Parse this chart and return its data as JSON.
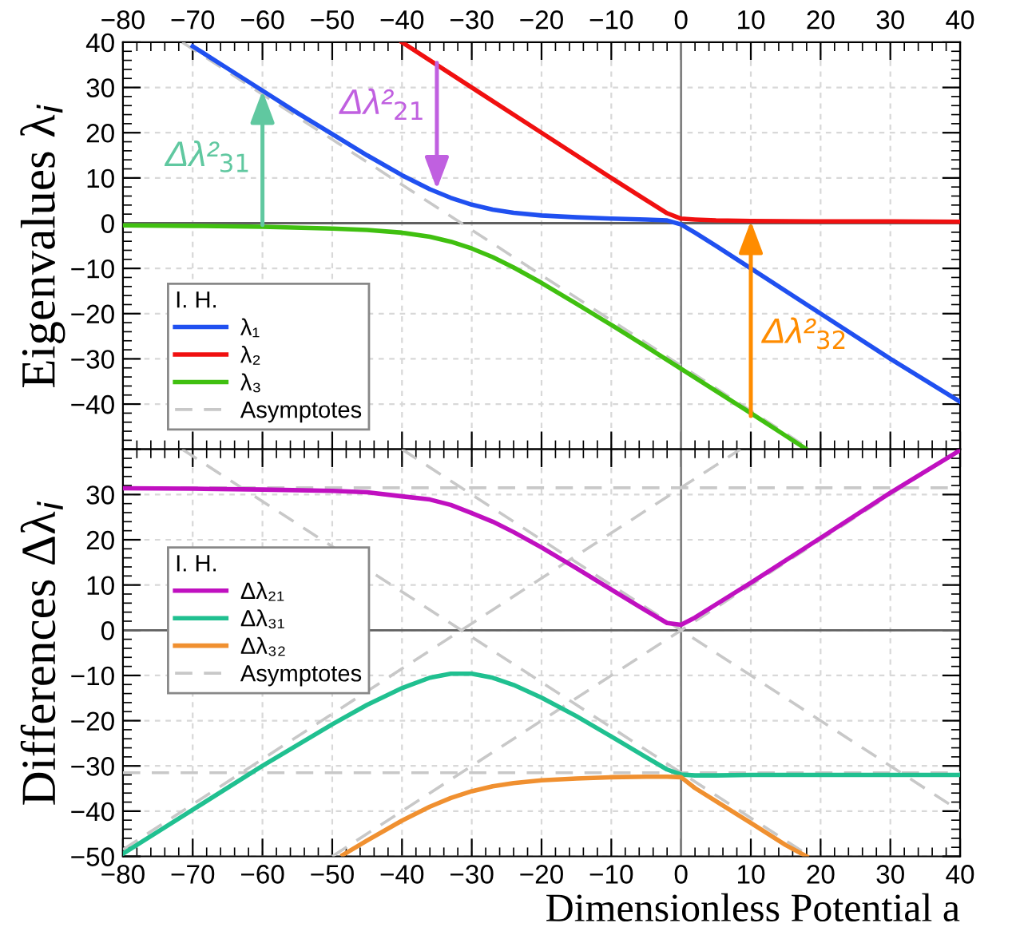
{
  "chart_data": [
    {
      "type": "line",
      "ylabel": "Eigenvalues λ$_{i}$",
      "legend_title": "I. H.",
      "legend": "bottom left",
      "grid": true,
      "xlim": [
        -80,
        40
      ],
      "xticks": [
        -80,
        -70,
        -60,
        -50,
        -40,
        -30,
        -20,
        -10,
        0,
        10,
        20,
        30,
        40
      ],
      "ylim": [
        -50,
        40
      ],
      "yticks": [
        -40,
        -30,
        -20,
        -10,
        0,
        10,
        20,
        30,
        40
      ],
      "ref_lines": [
        {
          "axis": "x",
          "value": 0,
          "color": "#808080"
        },
        {
          "axis": "y",
          "value": 0,
          "color": "#606060"
        }
      ],
      "series": [
        {
          "name": "Asymptotes",
          "color": "#c8c8c8",
          "line_style": "dashed",
          "x": [
            -71.5,
            18.5
          ],
          "values": [
            40,
            -50
          ]
        },
        {
          "name": "λ₁",
          "color": "#2050f0",
          "line_style": "solid",
          "x": [
            -70,
            -65,
            -60,
            -55,
            -50,
            -45,
            -40,
            -36,
            -33,
            -30,
            -27,
            -24,
            -20,
            -15,
            -10,
            -5,
            -2,
            0,
            2,
            5,
            10,
            20,
            30,
            40
          ],
          "values": [
            39.1,
            34.2,
            29.3,
            24.4,
            19.7,
            15.0,
            10.6,
            7.5,
            5.6,
            4.1,
            3.0,
            2.3,
            1.7,
            1.3,
            1.0,
            0.8,
            0.6,
            -0.3,
            -2.1,
            -5.0,
            -10.0,
            -20.0,
            -30.0,
            -39.5
          ]
        },
        {
          "name": "λ₂",
          "color": "#f01010",
          "line_style": "solid",
          "x": [
            -40,
            -30,
            -20,
            -10,
            -5,
            -2,
            0,
            2,
            5,
            10,
            20,
            30,
            40
          ],
          "values": [
            40,
            30,
            20,
            10,
            5.1,
            2.2,
            1.0,
            0.8,
            0.6,
            0.5,
            0.4,
            0.4,
            0.3
          ]
        },
        {
          "name": "λ₃",
          "color": "#40c010",
          "line_style": "solid",
          "x": [
            -80,
            -70,
            -60,
            -50,
            -45,
            -40,
            -36,
            -33,
            -30,
            -27,
            -24,
            -20,
            -15,
            -10,
            -5,
            0,
            5,
            10,
            15,
            18
          ],
          "values": [
            -0.5,
            -0.6,
            -0.8,
            -1.2,
            -1.5,
            -2.1,
            -3.0,
            -4.1,
            -5.6,
            -7.5,
            -9.8,
            -13.2,
            -17.8,
            -22.5,
            -27.3,
            -32.2,
            -37.1,
            -42.0,
            -47.0,
            -50.0
          ]
        }
      ],
      "annotations": [
        {
          "text": "Δλ²$_{31}$",
          "x": -60,
          "y": 29.3
        },
        {
          "text": "Δλ²$_{21}$",
          "x": -35,
          "y": 7.5
        },
        {
          "text": "Δλ²$_{32}$",
          "x": 10,
          "y": 0.5
        }
      ]
    },
    {
      "type": "line",
      "xlabel": "Dimensionless Potential a",
      "ylabel": "Differences Δλ$_{i}$",
      "legend_title": "I. H.",
      "legend": "left",
      "grid": true,
      "xlim": [
        -80,
        40
      ],
      "xticks": [
        -80,
        -70,
        -60,
        -50,
        -40,
        -30,
        -20,
        -10,
        0,
        10,
        20,
        30,
        40
      ],
      "ylim": [
        -50,
        40
      ],
      "yticks": [
        -50,
        -40,
        -30,
        -20,
        -10,
        0,
        10,
        20,
        30,
        {
          "value": 40,
          "label": null
        }
      ],
      "ref_lines": [
        {
          "axis": "x",
          "value": 0,
          "color": "#808080"
        },
        {
          "axis": "y",
          "value": 0,
          "color": "#606060"
        }
      ],
      "series": [
        {
          "name": "Asymptotes",
          "color": "#c8c8c8",
          "line_style": "dashed",
          "x": [
            -80,
            40
          ],
          "values": [
            31.5,
            31.5
          ]
        },
        {
          "color": "#c8c8c8",
          "line_style": "dashed",
          "x": [
            -80,
            40
          ],
          "values": [
            -31.5,
            -31.5
          ]
        },
        {
          "color": "#c8c8c8",
          "line_style": "dashed",
          "x": [
            -80,
            8.5
          ],
          "values": [
            -48.5,
            40
          ]
        },
        {
          "color": "#c8c8c8",
          "line_style": "dashed",
          "x": [
            -71.5,
            18.5
          ],
          "values": [
            40,
            -50
          ]
        },
        {
          "color": "#c8c8c8",
          "line_style": "dashed",
          "x": [
            -50,
            40
          ],
          "values": [
            -50,
            40
          ]
        },
        {
          "color": "#c8c8c8",
          "line_style": "dashed",
          "x": [
            -40,
            40
          ],
          "values": [
            40,
            -40
          ]
        },
        {
          "name": "Δλ₂₁",
          "color": "#c010c0",
          "line_style": "solid",
          "x": [
            -80,
            -70,
            -60,
            -50,
            -45,
            -40,
            -36,
            -33,
            -30,
            -27,
            -24,
            -20,
            -15,
            -10,
            -5,
            -2,
            0,
            2,
            5,
            10,
            20,
            30,
            40
          ],
          "values": [
            31.4,
            31.3,
            31.1,
            30.8,
            30.5,
            29.6,
            28.9,
            27.7,
            25.9,
            24.0,
            21.7,
            18.3,
            13.7,
            9.0,
            4.3,
            1.6,
            1.2,
            2.8,
            5.7,
            10.5,
            20.4,
            30.4,
            39.8
          ]
        },
        {
          "name": "Δλ₃₁",
          "color": "#20c090",
          "line_style": "solid",
          "x": [
            -80,
            -70,
            -60,
            -50,
            -45,
            -40,
            -36,
            -33,
            -30,
            -27,
            -24,
            -20,
            -15,
            -10,
            -5,
            -2,
            0,
            2,
            5,
            10,
            20,
            40
          ],
          "values": [
            -49.4,
            -39.7,
            -30.0,
            -20.8,
            -16.5,
            -12.8,
            -10.5,
            -9.6,
            -9.6,
            -10.5,
            -12.1,
            -14.9,
            -19.0,
            -23.5,
            -28.1,
            -30.8,
            -31.9,
            -32.1,
            -32.1,
            -32.0,
            -32.0,
            -32.0
          ]
        },
        {
          "name": "Δλ₃₂",
          "color": "#f09030",
          "line_style": "solid",
          "x": [
            -48.5,
            -45,
            -40,
            -36,
            -33,
            -30,
            -27,
            -24,
            -20,
            -15,
            -10,
            -5,
            -2,
            0,
            2,
            5,
            10,
            15,
            18
          ],
          "values": [
            -49.7,
            -46.5,
            -42.1,
            -39.0,
            -37.1,
            -35.6,
            -34.5,
            -33.8,
            -33.2,
            -32.8,
            -32.5,
            -32.4,
            -32.4,
            -32.5,
            -34.9,
            -37.8,
            -42.6,
            -47.5,
            -50.0
          ]
        }
      ]
    }
  ]
}
